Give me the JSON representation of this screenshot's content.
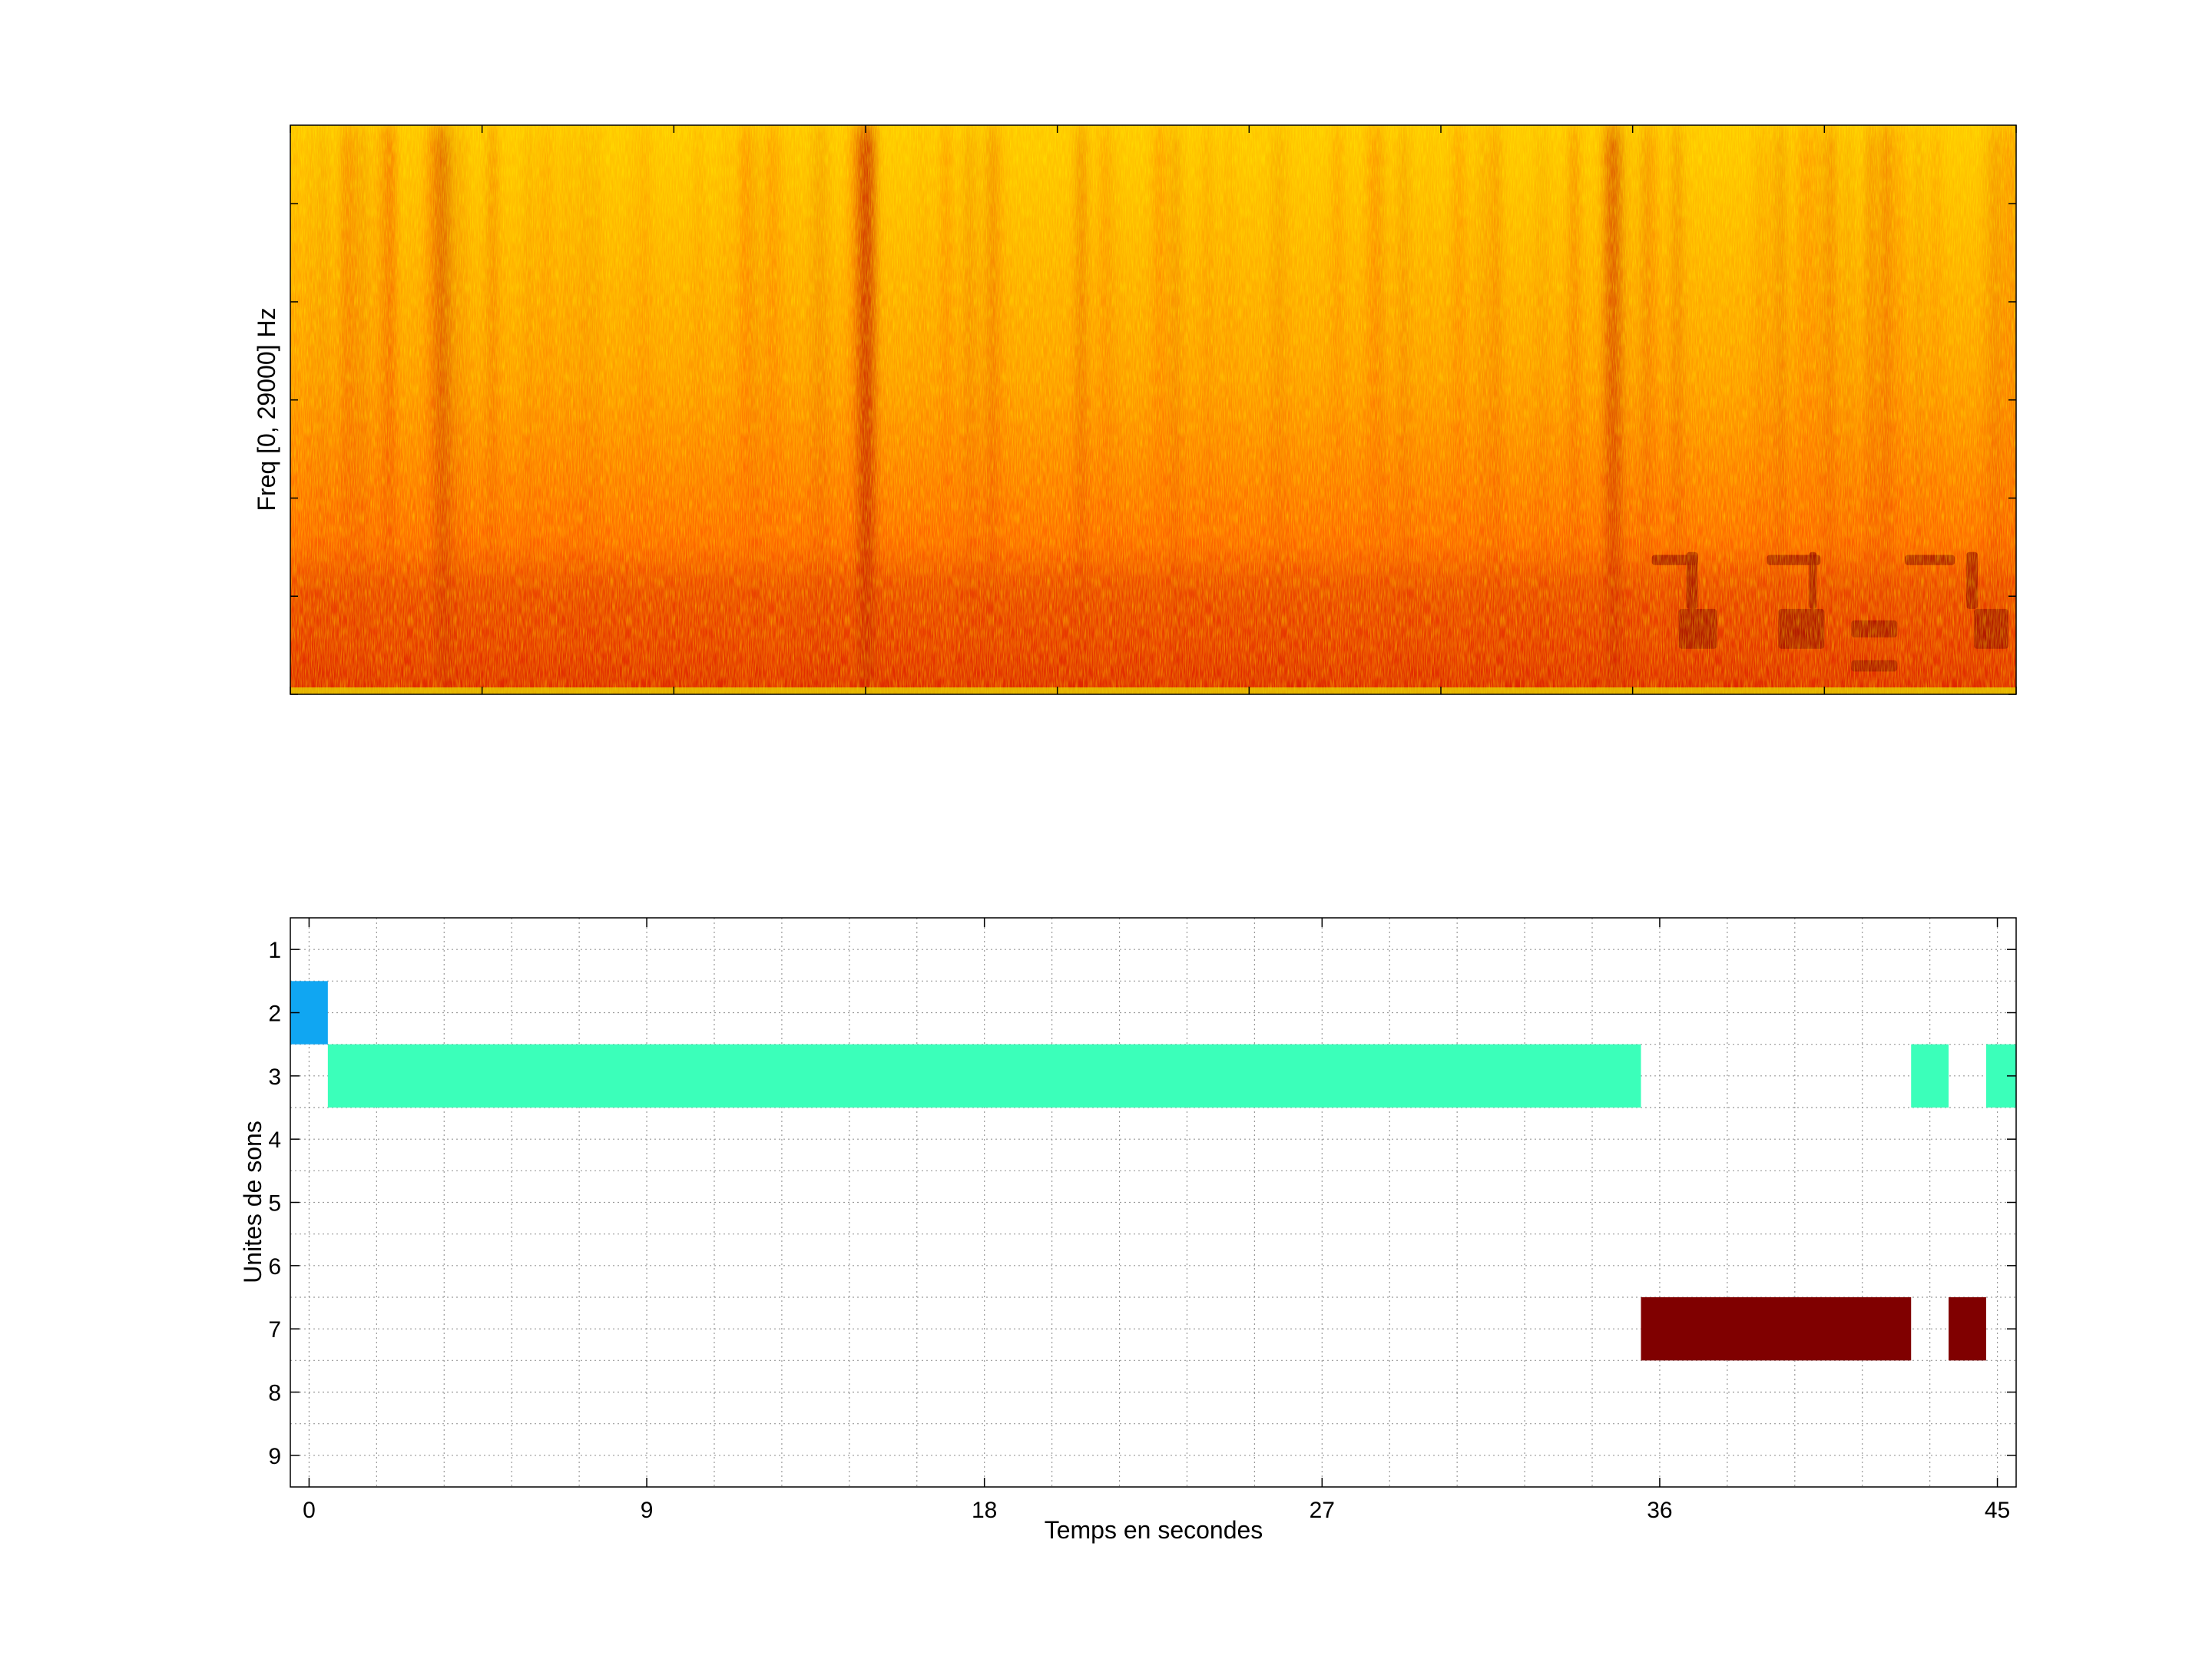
{
  "chart_data": [
    {
      "type": "heatmap",
      "title": "",
      "xlabel": "",
      "ylabel": "Freq [0, 29000] Hz",
      "xlim": [
        0,
        45
      ],
      "ylim": [
        0,
        29000
      ],
      "colormap": "autumn",
      "colors": {
        "low": "#ffff00",
        "high": "#800000",
        "mid": "#ff4500"
      },
      "grid": false,
      "notes_visible": [
        {
          "t": 4,
          "intensity": 0.45
        },
        {
          "t": 15,
          "intensity": 0.8
        },
        {
          "t": 34.5,
          "intensity": 0.55
        }
      ]
    },
    {
      "type": "bar",
      "title": "",
      "xlabel": "Temps en secondes",
      "ylabel": "Unites de sons",
      "xlim": [
        -0.5,
        45.5
      ],
      "ylim": [
        0.5,
        9.5
      ],
      "x_ticks": [
        "0",
        "9",
        "18",
        "27",
        "36",
        "45"
      ],
      "y_ticks": [
        "1",
        "2",
        "3",
        "4",
        "5",
        "6",
        "7",
        "8",
        "9"
      ],
      "grid": true,
      "series": [
        {
          "unit": 2,
          "color": "#10a6f2",
          "segments": [
            [
              -0.5,
              0.5
            ]
          ]
        },
        {
          "unit": 3,
          "color": "#3bffba",
          "segments": [
            [
              0.5,
              35.5
            ],
            [
              42.7,
              43.7
            ],
            [
              44.7,
              45.5
            ]
          ]
        },
        {
          "unit": 7,
          "color": "#800000",
          "segments": [
            [
              35.5,
              42.7
            ],
            [
              43.7,
              44.7
            ]
          ]
        }
      ]
    }
  ]
}
